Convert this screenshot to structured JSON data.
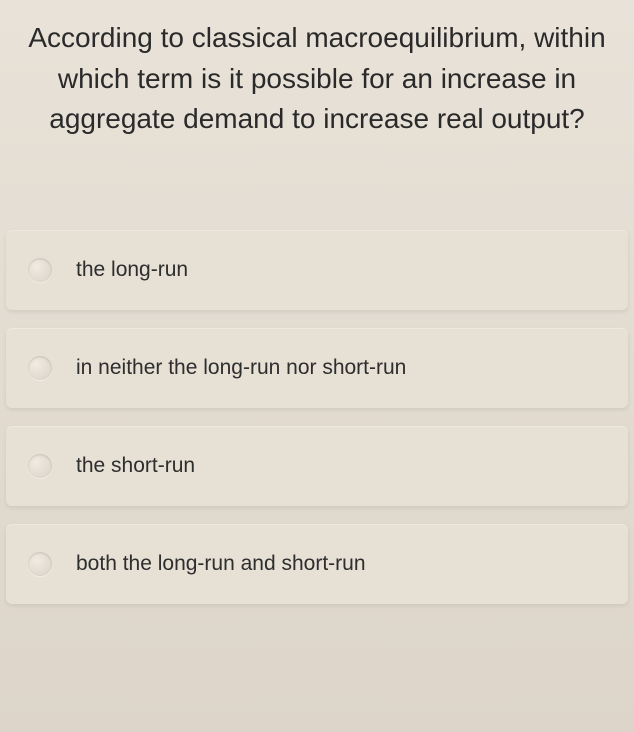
{
  "question": {
    "text": "According to classical macroequilibrium, within which term is it possible for an increase in aggregate demand to increase real output?"
  },
  "options": [
    {
      "label": "the long-run"
    },
    {
      "label": "in neither the long-run nor short-run"
    },
    {
      "label": "the short-run"
    },
    {
      "label": "both the long-run and short-run"
    }
  ],
  "styles": {
    "background_gradient_top": "#e8e2d8",
    "background_gradient_bottom": "#ddd5c9",
    "option_background": "#e6e0d5",
    "text_color": "#2a2a2a",
    "question_fontsize": 28,
    "option_fontsize": 21
  }
}
